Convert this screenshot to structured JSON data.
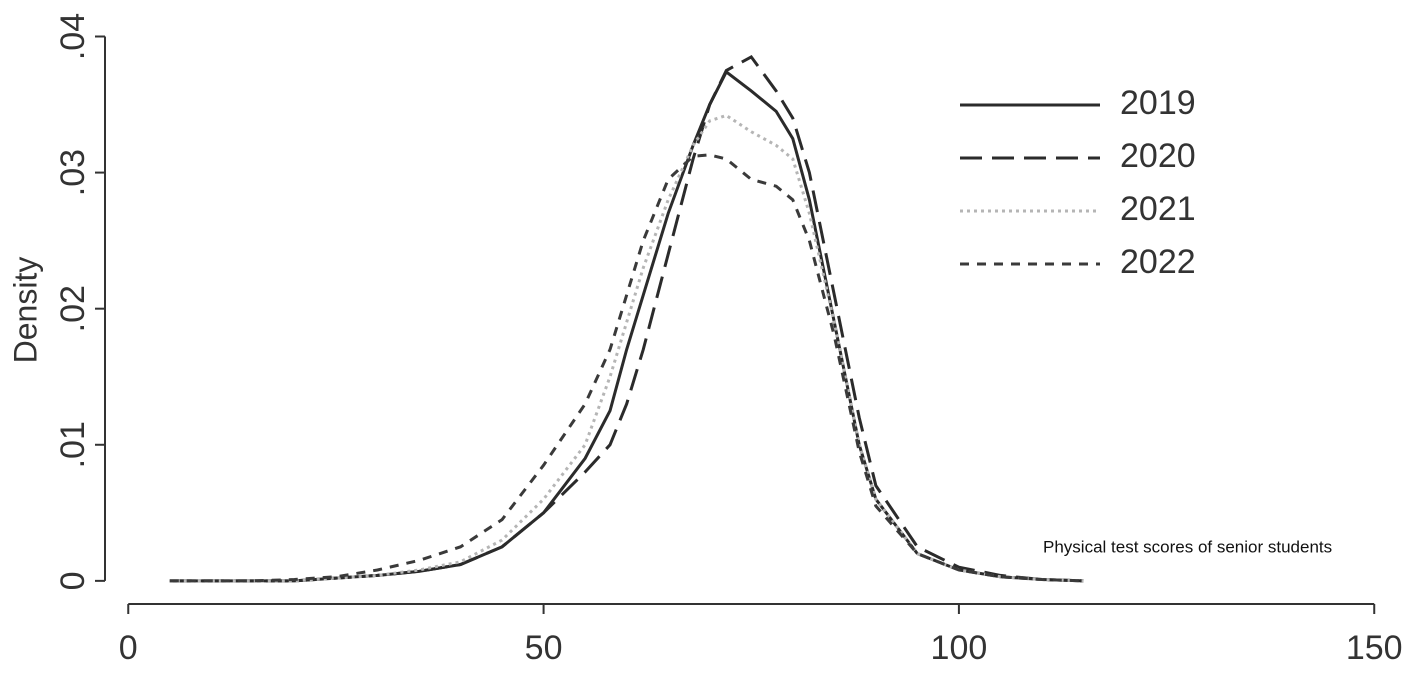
{
  "chart_data": {
    "type": "line",
    "y_label": "Density",
    "annotation": "Physical test scores of senior students",
    "x": [
      5,
      10,
      15,
      20,
      25,
      30,
      35,
      40,
      45,
      50,
      55,
      58,
      60,
      62,
      65,
      68,
      70,
      72,
      75,
      78,
      80,
      82,
      85,
      88,
      90,
      95,
      100,
      105,
      110,
      115
    ],
    "series": [
      {
        "name": "2019",
        "color": "#2b2b2b",
        "dash": "solid",
        "values": [
          0,
          0,
          0,
          0,
          0.0002,
          0.0004,
          0.0007,
          0.0012,
          0.0025,
          0.005,
          0.009,
          0.0125,
          0.017,
          0.021,
          0.027,
          0.032,
          0.035,
          0.0374,
          0.036,
          0.0345,
          0.0325,
          0.028,
          0.019,
          0.01,
          0.006,
          0.002,
          0.0008,
          0.0003,
          0.0001,
          0
        ]
      },
      {
        "name": "2020",
        "color": "#2b2b2b",
        "dash": "long",
        "values": [
          0,
          0,
          0,
          0,
          0.0002,
          0.0004,
          0.0007,
          0.0012,
          0.0025,
          0.005,
          0.008,
          0.01,
          0.013,
          0.017,
          0.024,
          0.031,
          0.035,
          0.0375,
          0.0385,
          0.036,
          0.034,
          0.03,
          0.021,
          0.012,
          0.007,
          0.0025,
          0.001,
          0.0004,
          0.0001,
          0
        ]
      },
      {
        "name": "2021",
        "color": "#b5b5b5",
        "dash": "dot",
        "values": [
          0,
          0,
          0,
          0,
          0.0002,
          0.0004,
          0.0008,
          0.0014,
          0.003,
          0.006,
          0.01,
          0.015,
          0.019,
          0.023,
          0.028,
          0.032,
          0.0338,
          0.0342,
          0.033,
          0.032,
          0.031,
          0.027,
          0.019,
          0.01,
          0.006,
          0.002,
          0.0008,
          0.0003,
          0.0001,
          0
        ]
      },
      {
        "name": "2022",
        "color": "#3a3a3a",
        "dash": "short",
        "values": [
          0,
          0,
          0,
          0.0001,
          0.0003,
          0.0008,
          0.0015,
          0.0025,
          0.0045,
          0.0085,
          0.013,
          0.017,
          0.021,
          0.025,
          0.0295,
          0.0312,
          0.0313,
          0.031,
          0.0295,
          0.029,
          0.028,
          0.025,
          0.018,
          0.0095,
          0.0055,
          0.002,
          0.0008,
          0.0003,
          0.0001,
          0
        ]
      }
    ],
    "xlim": [
      -2.8,
      152.5
    ],
    "ylim": [
      -0.0017,
      0.0418
    ],
    "xticks": [
      0,
      50,
      100,
      150
    ],
    "yticks": [
      0,
      {
        "value": 0.01,
        "label": ".01"
      },
      {
        "value": 0.02,
        "label": ".02"
      },
      {
        "value": 0.03,
        "label": ".03"
      },
      {
        "value": 0.04,
        "label": ".04"
      }
    ],
    "grid": false,
    "legend": "top-right"
  }
}
